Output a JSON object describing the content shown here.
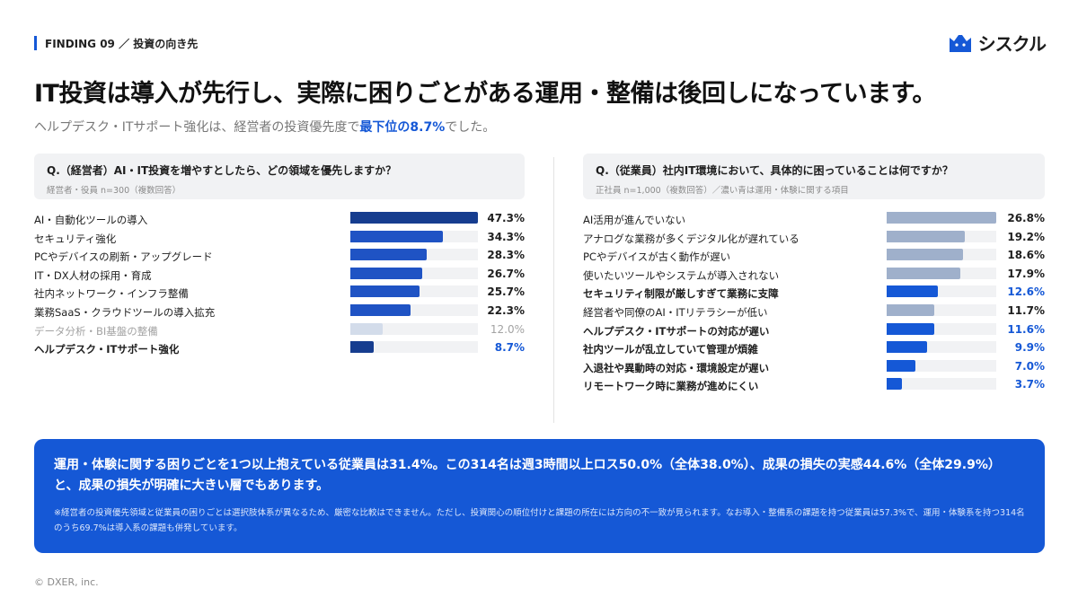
{
  "header": {
    "finding": "FINDING 09 ／ 投資の向き先",
    "brand": "シスクル",
    "title": "IT投資は導入が先行し、実際に困りごとがある運用・整備は後回しになっています。",
    "subtitle_prefix": "ヘルプデスク・ITサポート強化は、経営者の投資優先度で",
    "subtitle_highlight": "最下位の8.7%",
    "subtitle_suffix": "でした。"
  },
  "colors": {
    "accent": "#1558d6",
    "dark_navy": "#163d8f",
    "mid_blue": "#1f53c4",
    "light_blue": "#d3dcea",
    "grey_blue": "#9fb0cb",
    "track": "#f1f2f4"
  },
  "chart_data": [
    {
      "type": "bar",
      "orientation": "horizontal",
      "question": "Q.（経営者）AI・IT投資を増やすとしたら、どの領域を優先しますか？",
      "note": "経営者・役員 n=300（複数回答）",
      "categories": [
        "AI・自動化ツールの導入",
        "セキュリティ強化",
        "PCやデバイスの刷新・アップグレード",
        "IT・DX人材の採用・育成",
        "社内ネットワーク・インフラ整備",
        "業務SaaS・クラウドツールの導入拡充",
        "データ分析・BI基盤の整備",
        "ヘルプデスク・ITサポート強化"
      ],
      "values": [
        47.3,
        34.3,
        28.3,
        26.7,
        25.7,
        22.3,
        12.0,
        8.7
      ],
      "labels": [
        "47.3%",
        "34.3%",
        "28.3%",
        "26.7%",
        "25.7%",
        "22.3%",
        "12.0%",
        "8.7%"
      ],
      "styles": [
        "navy",
        "mid",
        "mid",
        "mid",
        "mid",
        "mid",
        "light",
        "highlight"
      ],
      "xlim": [
        0,
        47.3
      ]
    },
    {
      "type": "bar",
      "orientation": "horizontal",
      "question": "Q.（従業員）社内IT環境において、具体的に困っていることは何ですか？",
      "note": "正社員 n=1,000（複数回答）／濃い青は運用・体験に関する項目",
      "categories": [
        "AI活用が進んでいない",
        "アナログな業務が多くデジタル化が遅れている",
        "PCやデバイスが古く動作が遅い",
        "使いたいツールやシステムが導入されない",
        "セキュリティ制限が厳しすぎて業務に支障",
        "経営者や同僚のAI・ITリテラシーが低い",
        "ヘルプデスク・ITサポートの対応が遅い",
        "社内ツールが乱立していて管理が煩雑",
        "入退社や異動時の対応・環境設定が遅い",
        "リモートワーク時に業務が進めにくい"
      ],
      "values": [
        26.8,
        19.2,
        18.6,
        17.9,
        12.6,
        11.7,
        11.6,
        9.9,
        7.0,
        3.7
      ],
      "labels": [
        "26.8%",
        "19.2%",
        "18.6%",
        "17.9%",
        "12.6%",
        "11.7%",
        "11.6%",
        "9.9%",
        "7.0%",
        "3.7%"
      ],
      "styles": [
        "grey",
        "grey",
        "grey",
        "grey",
        "ops",
        "grey",
        "ops",
        "ops",
        "ops",
        "ops"
      ],
      "xlim": [
        0,
        26.8
      ]
    }
  ],
  "callout": {
    "main": "運用・体験に関する困りごとを1つ以上抱えている従業員は31.4%。この314名は週3時間以上ロス50.0%（全体38.0%）、成果の損失の実感44.6%（全体29.9%）と、成果の損失が明確に大きい層でもあります。",
    "note": "※経営者の投資優先領域と従業員の困りごとは選択肢体系が異なるため、厳密な比較はできません。ただし、投資関心の順位付けと課題の所在には方向の不一致が見られます。なお導入・整備系の課題を持つ従業員は57.3%で、運用・体験系を持つ314名のうち69.7%は導入系の課題も併発しています。"
  },
  "footer": {
    "copyright": "© DXER, inc."
  }
}
